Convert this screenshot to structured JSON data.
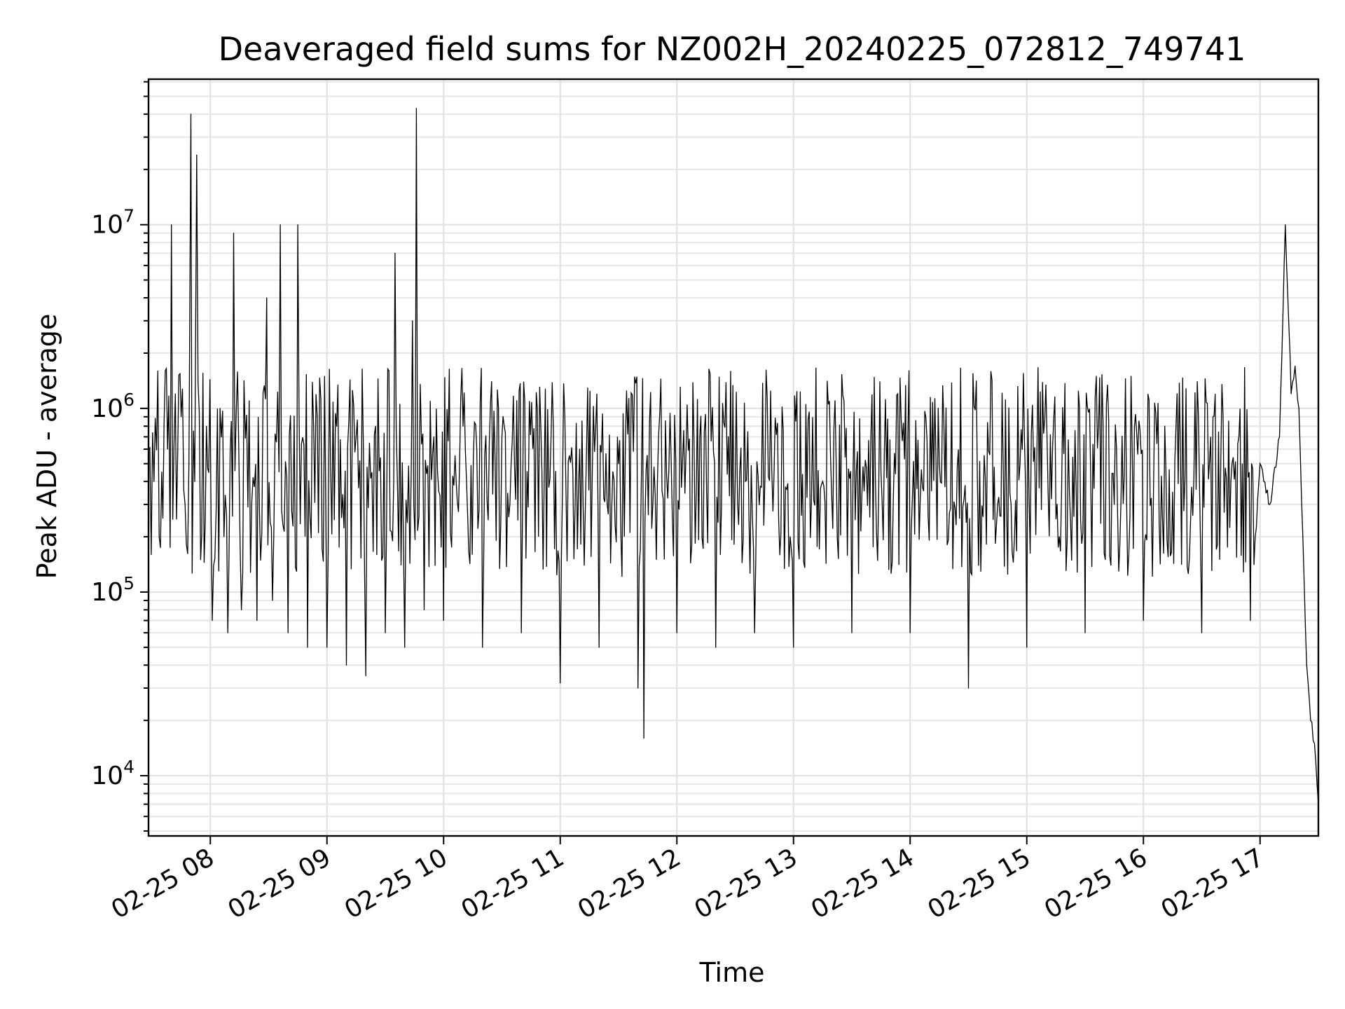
{
  "chart_data": {
    "type": "line",
    "title": "Deaveraged field sums for NZ002H_20240225_072812_749741",
    "xlabel": "Time",
    "ylabel": "Peak ADU - average",
    "x_scale": "time",
    "y_scale": "log",
    "xlim": [
      "2024-02-25 07:28:12",
      "2024-02-25 17:30:00"
    ],
    "ylim": [
      4700,
      62000000
    ],
    "grid": true,
    "legend": "none",
    "line_color": "#000000",
    "x_tick_labels": [
      "02-25 08",
      "02-25 09",
      "02-25 10",
      "02-25 11",
      "02-25 12",
      "02-25 13",
      "02-25 14",
      "02-25 15",
      "02-25 16",
      "02-25 17"
    ],
    "y_ticks": [
      {
        "base": "10",
        "exp": "4",
        "value": 10000
      },
      {
        "base": "10",
        "exp": "5",
        "value": 100000
      },
      {
        "base": "10",
        "exp": "6",
        "value": 1000000
      },
      {
        "base": "10",
        "exp": "7",
        "value": 10000000
      }
    ],
    "series": [
      {
        "x": [
          "2024-02-25 07:28:12",
          "2024-02-25 07:31:00",
          "2024-02-25 07:33:00",
          "2024-02-25 07:35:00",
          "2024-02-25 07:38:00",
          "2024-02-25 07:40:00",
          "2024-02-25 07:42:00",
          "2024-02-25 07:45:00",
          "2024-02-25 07:47:00",
          "2024-02-25 07:49:00",
          "2024-02-25 07:50:00",
          "2024-02-25 07:52:00",
          "2024-02-25 07:53:00",
          "2024-02-25 07:55:00",
          "2024-02-25 07:58:00",
          "2024-02-25 08:01:00",
          "2024-02-25 08:05:00",
          "2024-02-25 08:09:00",
          "2024-02-25 08:12:00",
          "2024-02-25 08:16:00",
          "2024-02-25 08:20:00",
          "2024-02-25 08:24:00",
          "2024-02-25 08:29:00",
          "2024-02-25 08:32:00",
          "2024-02-25 08:36:00",
          "2024-02-25 08:40:00",
          "2024-02-25 08:45:00",
          "2024-02-25 08:50:00",
          "2024-02-25 08:55:00",
          "2024-02-25 09:00:00",
          "2024-02-25 09:05:00",
          "2024-02-25 09:10:00",
          "2024-02-25 09:15:00",
          "2024-02-25 09:20:00",
          "2024-02-25 09:25:00",
          "2024-02-25 09:30:00",
          "2024-02-25 09:35:00",
          "2024-02-25 09:40:00",
          "2024-02-25 09:44:00",
          "2024-02-25 09:46:00",
          "2024-02-25 09:50:00",
          "2024-02-25 09:55:00",
          "2024-02-25 10:00:00",
          "2024-02-25 10:10:00",
          "2024-02-25 10:20:00",
          "2024-02-25 10:30:00",
          "2024-02-25 10:40:00",
          "2024-02-25 10:50:00",
          "2024-02-25 11:00:00",
          "2024-02-25 11:10:00",
          "2024-02-25 11:20:00",
          "2024-02-25 11:30:00",
          "2024-02-25 11:40:00",
          "2024-02-25 11:43:00",
          "2024-02-25 11:50:00",
          "2024-02-25 12:00:00",
          "2024-02-25 12:10:00",
          "2024-02-25 12:20:00",
          "2024-02-25 12:30:00",
          "2024-02-25 12:40:00",
          "2024-02-25 12:50:00",
          "2024-02-25 13:00:00",
          "2024-02-25 13:15:00",
          "2024-02-25 13:30:00",
          "2024-02-25 13:45:00",
          "2024-02-25 14:00:00",
          "2024-02-25 14:15:00",
          "2024-02-25 14:30:00",
          "2024-02-25 14:45:00",
          "2024-02-25 15:00:00",
          "2024-02-25 15:15:00",
          "2024-02-25 15:30:00",
          "2024-02-25 15:45:00",
          "2024-02-25 16:00:00",
          "2024-02-25 16:15:00",
          "2024-02-25 16:30:00",
          "2024-02-25 16:45:00",
          "2024-02-25 16:55:00",
          "2024-02-25 17:00:00",
          "2024-02-25 17:05:00",
          "2024-02-25 17:10:00",
          "2024-02-25 17:13:00",
          "2024-02-25 17:16:00",
          "2024-02-25 17:18:00",
          "2024-02-25 17:20:00",
          "2024-02-25 17:22:00",
          "2024-02-25 17:24:00",
          "2024-02-25 17:26:00",
          "2024-02-25 17:28:00",
          "2024-02-25 17:30:00"
        ],
        "y": [
          600000,
          400000,
          1600000,
          450000,
          600000,
          10000000,
          1200000,
          900000,
          300000,
          500000,
          40000000,
          400000,
          24000000,
          150000,
          800000,
          70000,
          1000000,
          60000,
          9000000,
          80000,
          1100000,
          70000,
          4000000,
          90000,
          10000000,
          60000,
          10000000,
          50000,
          900000,
          50000,
          800000,
          40000,
          700000,
          35000,
          800000,
          60000,
          7000000,
          50000,
          3000000,
          43000000,
          80000,
          700000,
          70000,
          800000,
          50000,
          700000,
          60000,
          800000,
          32000,
          600000,
          50000,
          500000,
          30000,
          16000,
          400000,
          60000,
          350000,
          50000,
          400000,
          60000,
          450000,
          50000,
          400000,
          60000,
          450000,
          60000,
          500000,
          30000,
          300000,
          50000,
          250000,
          60000,
          300000,
          70000,
          350000,
          60000,
          400000,
          70000,
          500000,
          300000,
          700000,
          10000000,
          1200000,
          1700000,
          1000000,
          200000,
          40000,
          20000,
          15000,
          7000
        ]
      }
    ]
  }
}
